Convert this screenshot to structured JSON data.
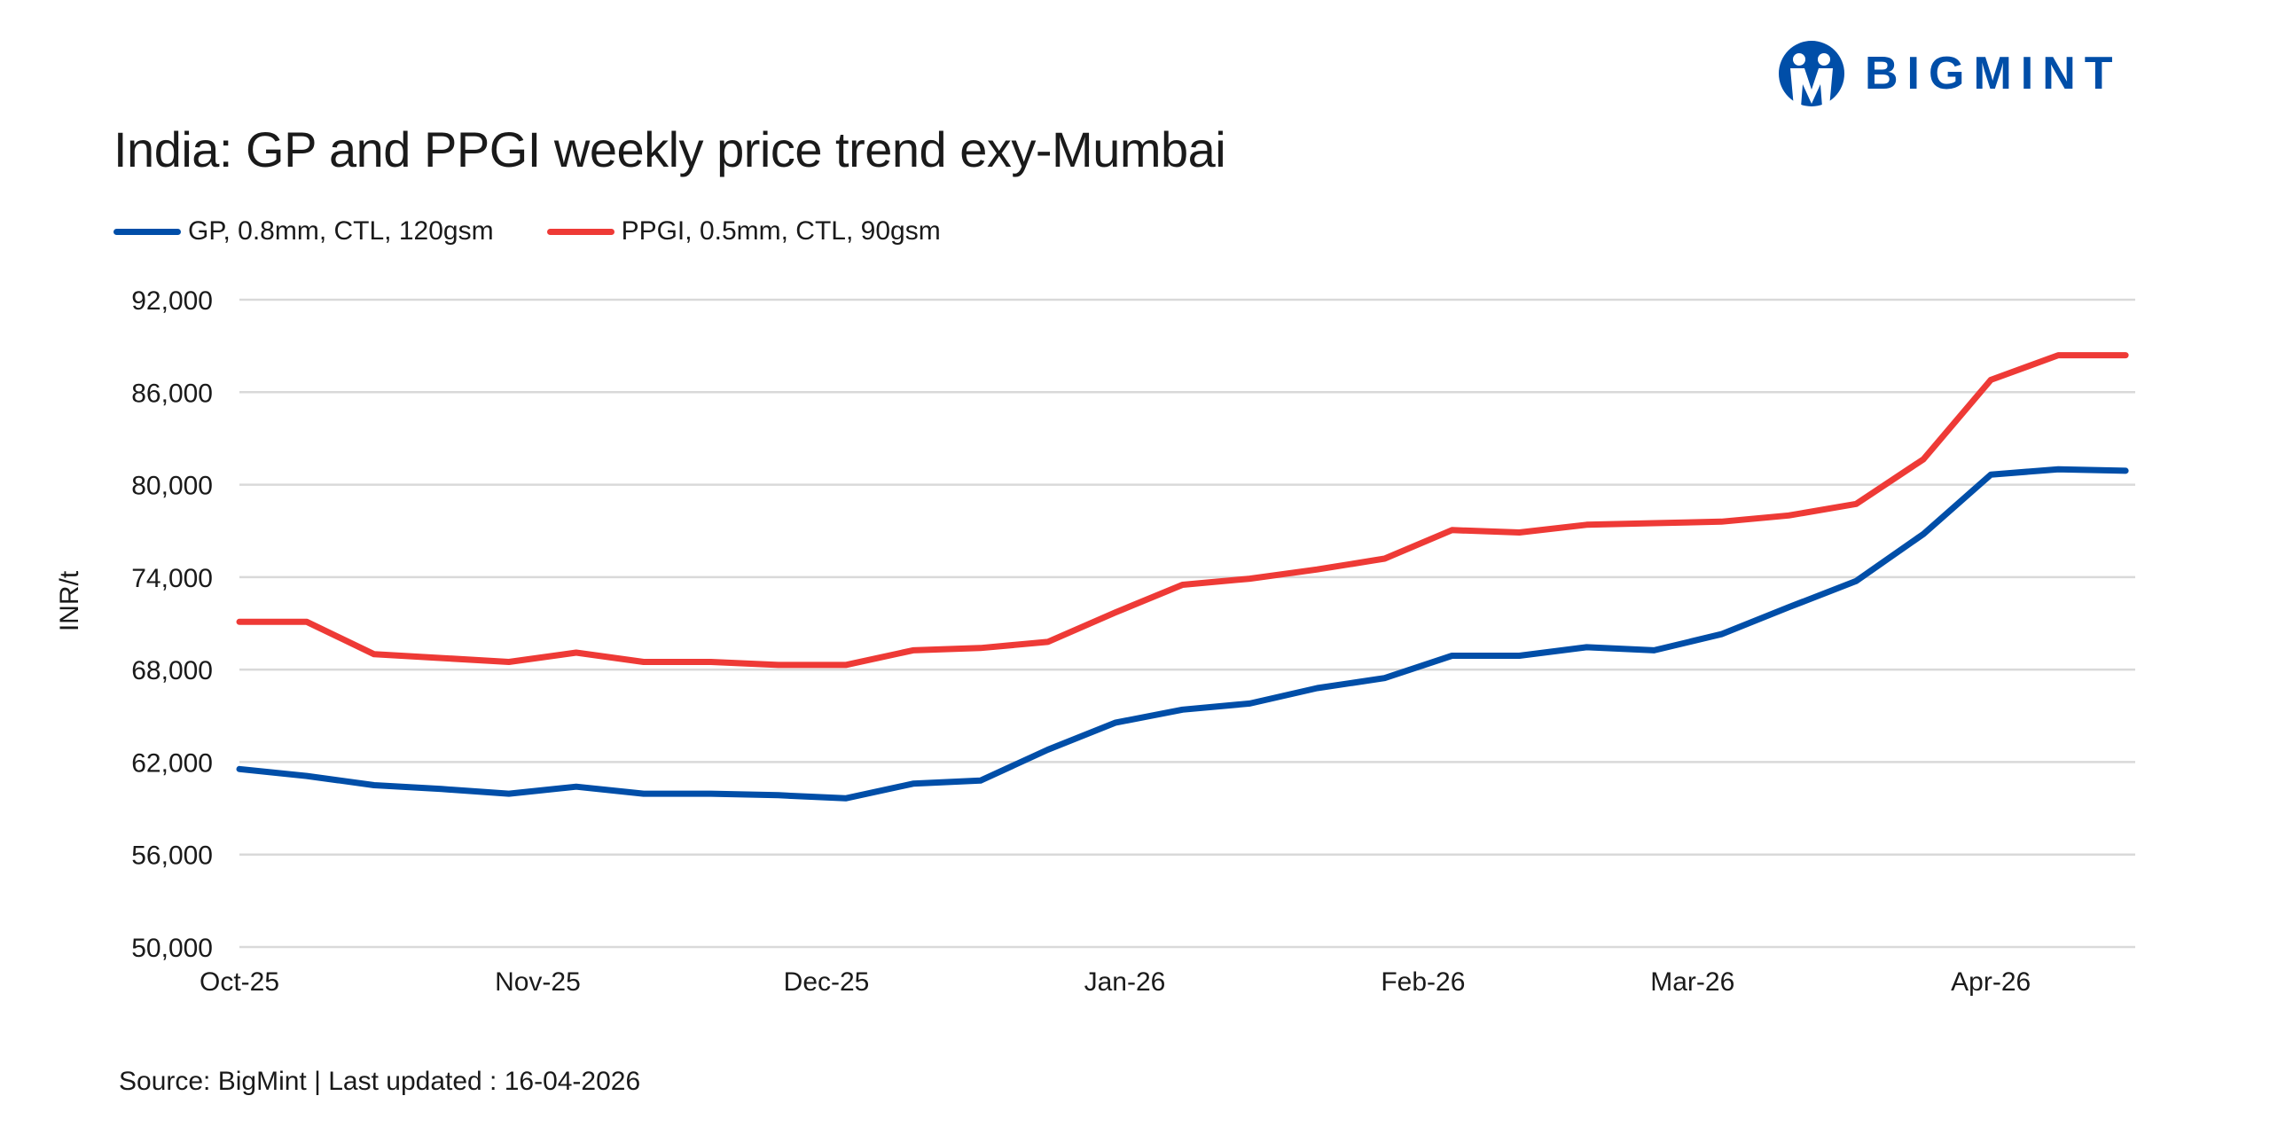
{
  "title": "India: GP and PPGI weekly price trend exy-Mumbai",
  "brand": {
    "name": "BIGMINT",
    "color": "#004ea8"
  },
  "source": "Source: BigMint | Last updated : 16-04-2026",
  "chart_data": {
    "type": "line",
    "title": "India: GP and PPGI weekly price trend exy-Mumbai",
    "xlabel": "",
    "ylabel": "INR/t",
    "ylim": [
      50000,
      92000
    ],
    "yticks": [
      50000,
      56000,
      62000,
      68000,
      74000,
      80000,
      86000,
      92000
    ],
    "ytick_labels": [
      "50,000",
      "56,000",
      "62,000",
      "68,000",
      "74,000",
      "80,000",
      "86,000",
      "92,000"
    ],
    "xlim": [
      "2025-10-01",
      "2026-04-16"
    ],
    "xticks": [
      "2025-10-01",
      "2025-11-01",
      "2025-12-01",
      "2026-01-01",
      "2026-02-01",
      "2026-03-01",
      "2026-04-01"
    ],
    "xtick_labels": [
      "Oct-25",
      "Nov-25",
      "Dec-25",
      "Jan-26",
      "Feb-26",
      "Mar-26",
      "Apr-26"
    ],
    "grid": "horizontal",
    "legend_placement": "top-left",
    "x": [
      "2025-10-01",
      "2025-10-08",
      "2025-10-15",
      "2025-10-22",
      "2025-10-29",
      "2025-11-05",
      "2025-11-12",
      "2025-11-19",
      "2025-11-26",
      "2025-12-03",
      "2025-12-10",
      "2025-12-17",
      "2025-12-24",
      "2025-12-31",
      "2026-01-07",
      "2026-01-14",
      "2026-01-21",
      "2026-01-28",
      "2026-02-04",
      "2026-02-11",
      "2026-02-18",
      "2026-02-25",
      "2026-03-04",
      "2026-03-11",
      "2026-03-18",
      "2026-03-25",
      "2026-04-01",
      "2026-04-08",
      "2026-04-15"
    ],
    "series": [
      {
        "name": "GP, 0.8mm, CTL, 120gsm",
        "color": "#004ea8",
        "values": [
          61550,
          61100,
          60500,
          60250,
          59950,
          60400,
          59950,
          59950,
          59850,
          59650,
          60600,
          60800,
          62800,
          64550,
          65400,
          65800,
          66800,
          67450,
          68900,
          68900,
          69450,
          69250,
          70300,
          72050,
          73750,
          76800,
          80650,
          81000,
          80900
        ]
      },
      {
        "name": "PPGI, 0.5mm, CTL, 90gsm",
        "color": "#ee3a36",
        "values": [
          71100,
          71100,
          69000,
          68750,
          68500,
          69100,
          68500,
          68500,
          68300,
          68300,
          69250,
          69400,
          69800,
          71700,
          73500,
          73900,
          74500,
          75200,
          77050,
          76900,
          77400,
          77500,
          77600,
          78000,
          78750,
          81650,
          86800,
          88400,
          88400
        ]
      }
    ]
  }
}
